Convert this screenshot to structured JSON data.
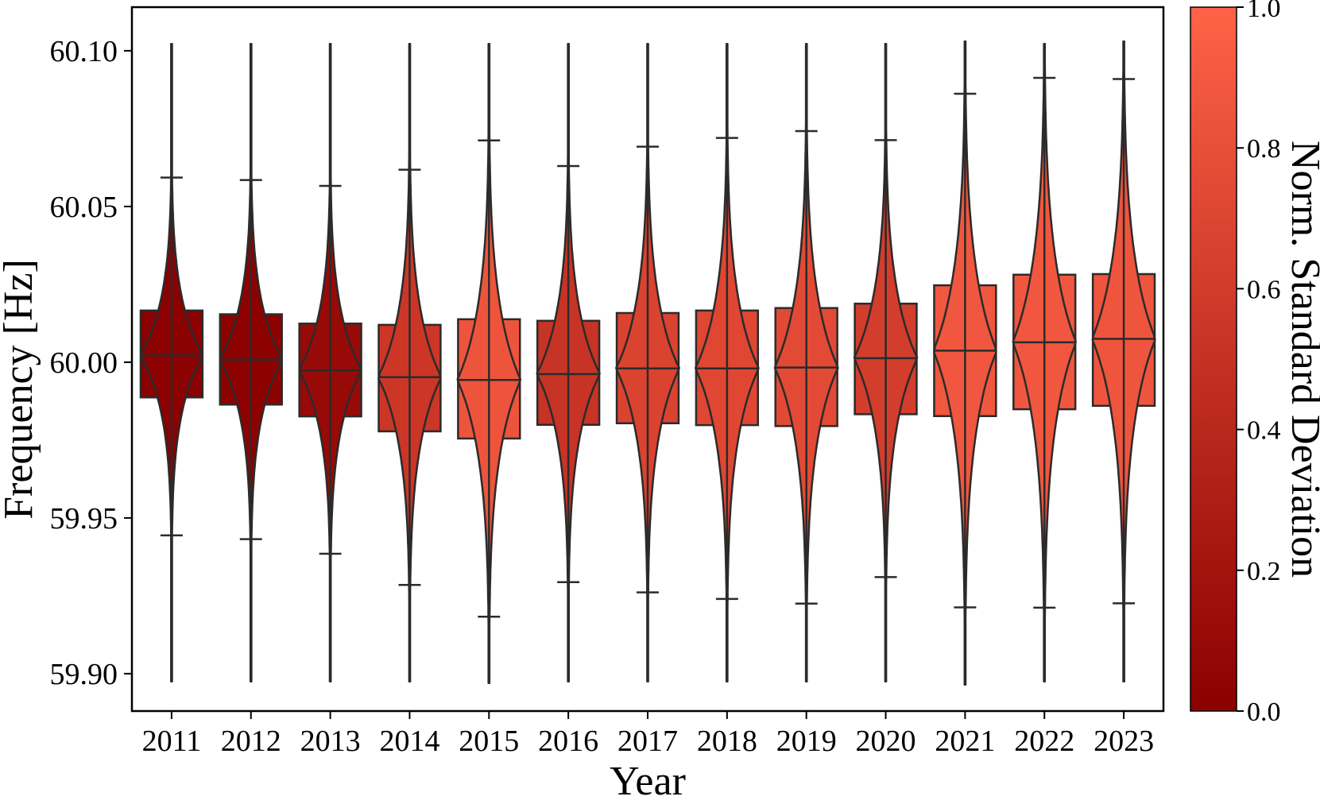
{
  "chart_data": {
    "type": "violin",
    "title": "",
    "xlabel": "Year",
    "ylabel": "Frequency [Hz]",
    "ylim": [
      59.888,
      60.114
    ],
    "yticks": [
      59.9,
      59.95,
      60.0,
      60.05,
      60.1
    ],
    "ytick_labels": [
      "59.90",
      "59.95",
      "60.00",
      "60.05",
      "60.10"
    ],
    "categories": [
      "2011",
      "2012",
      "2013",
      "2014",
      "2015",
      "2016",
      "2017",
      "2018",
      "2019",
      "2020",
      "2021",
      "2022",
      "2023"
    ],
    "series": [
      {
        "median": 60.0022,
        "q1": 59.9887,
        "q3": 60.0166,
        "whisker_low": 59.9444,
        "whisker_high": 60.0593,
        "min": 59.8975,
        "max": 60.1022,
        "norm_std": 0.0
      },
      {
        "median": 60.0008,
        "q1": 59.9864,
        "q3": 60.0154,
        "whisker_low": 59.9432,
        "whisker_high": 60.0585,
        "min": 59.8975,
        "max": 60.1022,
        "norm_std": 0.02
      },
      {
        "median": 59.9974,
        "q1": 59.9826,
        "q3": 60.0124,
        "whisker_low": 59.9385,
        "whisker_high": 60.0566,
        "min": 59.8975,
        "max": 60.1022,
        "norm_std": 0.1
      },
      {
        "median": 59.9952,
        "q1": 59.9778,
        "q3": 60.012,
        "whisker_low": 59.9285,
        "whisker_high": 60.0618,
        "min": 59.8975,
        "max": 60.1022,
        "norm_std": 0.55
      },
      {
        "median": 59.9943,
        "q1": 59.9755,
        "q3": 60.0138,
        "whisker_low": 59.9183,
        "whisker_high": 60.0712,
        "min": 59.897,
        "max": 60.1022,
        "norm_std": 0.85
      },
      {
        "median": 59.9962,
        "q1": 59.9799,
        "q3": 60.0133,
        "whisker_low": 59.9294,
        "whisker_high": 60.063,
        "min": 59.8975,
        "max": 60.1022,
        "norm_std": 0.52
      },
      {
        "median": 59.998,
        "q1": 59.9804,
        "q3": 60.0158,
        "whisker_low": 59.9261,
        "whisker_high": 60.0692,
        "min": 59.8975,
        "max": 60.1022,
        "norm_std": 0.68
      },
      {
        "median": 59.998,
        "q1": 59.9798,
        "q3": 60.0166,
        "whisker_low": 59.924,
        "whisker_high": 60.072,
        "min": 59.8975,
        "max": 60.1022,
        "norm_std": 0.72
      },
      {
        "median": 59.9983,
        "q1": 59.9795,
        "q3": 60.0174,
        "whisker_low": 59.9225,
        "whisker_high": 60.0742,
        "min": 59.8975,
        "max": 60.1022,
        "norm_std": 0.75
      },
      {
        "median": 60.0013,
        "q1": 59.9833,
        "q3": 60.0188,
        "whisker_low": 59.931,
        "whisker_high": 60.0713,
        "min": 59.8975,
        "max": 60.1022,
        "norm_std": 0.62
      },
      {
        "median": 60.0037,
        "q1": 59.9827,
        "q3": 60.0247,
        "whisker_low": 59.9213,
        "whisker_high": 60.0862,
        "min": 59.8965,
        "max": 60.103,
        "norm_std": 0.88
      },
      {
        "median": 60.0064,
        "q1": 59.9849,
        "q3": 60.0281,
        "whisker_low": 59.9212,
        "whisker_high": 60.0913,
        "min": 59.8975,
        "max": 60.1022,
        "norm_std": 0.88
      },
      {
        "median": 60.0075,
        "q1": 59.986,
        "q3": 60.0283,
        "whisker_low": 59.9226,
        "whisker_high": 60.0909,
        "min": 59.8975,
        "max": 60.103,
        "norm_std": 0.86
      }
    ],
    "colorbar": {
      "label": "Norm. Standard Deviation",
      "range": [
        0.0,
        1.0
      ],
      "ticks": [
        0.0,
        0.2,
        0.4,
        0.6,
        0.8,
        1.0
      ],
      "tick_labels": [
        "0.0",
        "0.2",
        "0.4",
        "0.6",
        "0.8",
        "1.0"
      ],
      "color_low": "#8b0000",
      "color_high": "#ff6347"
    },
    "outline_color": "#2b2b2b",
    "grid": false,
    "legend": "none"
  }
}
